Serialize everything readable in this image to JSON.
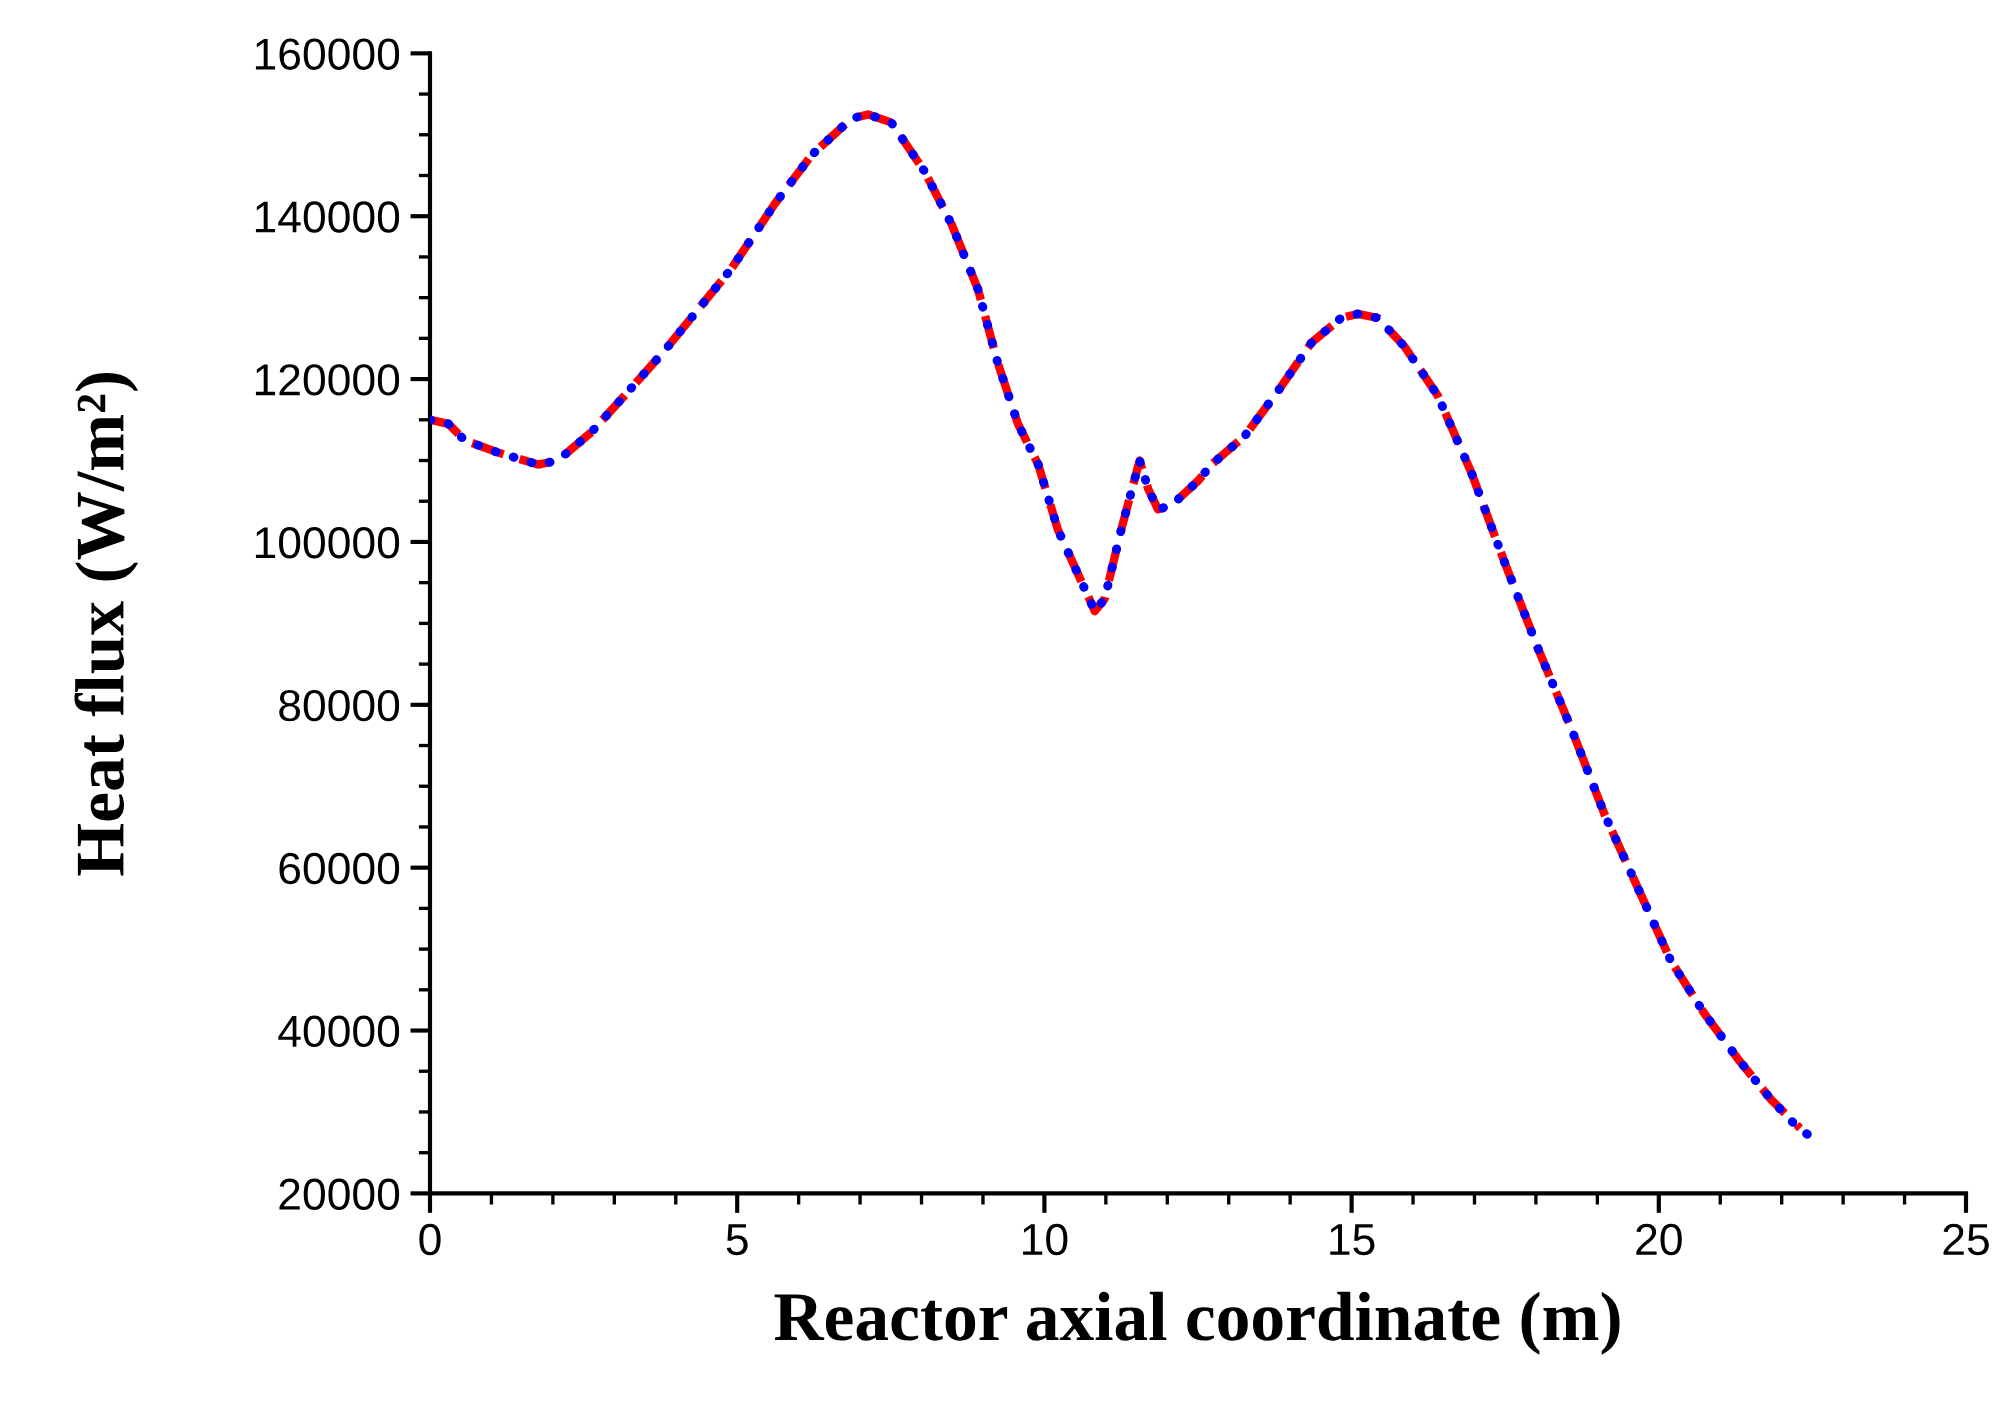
{
  "chart_data": {
    "type": "line",
    "xlabel": "Reactor axial coordinate (m)",
    "ylabel": "Heat flux (W/m²)",
    "xlim": [
      0,
      25
    ],
    "xticks": [
      0,
      5,
      10,
      15,
      20,
      25
    ],
    "ylim": [
      20000,
      160000
    ],
    "yticks": [
      20000,
      40000,
      60000,
      80000,
      100000,
      120000,
      140000,
      160000
    ],
    "grid": false,
    "marker": "none",
    "series": [
      {
        "color": "#ff0000",
        "line_style": "dashed",
        "x": [
          0,
          0.3,
          0.56,
          1.1,
          1.76,
          2.08,
          2.63,
          3.17,
          3.82,
          4.25,
          4.9,
          5.61,
          6.21,
          6.86,
          7.13,
          7.51,
          8.05,
          8.49,
          8.92,
          9.24,
          9.57,
          9.9,
          10.22,
          10.55,
          10.82,
          10.98,
          11.25,
          11.55,
          11.69,
          11.85,
          12.07,
          12.5,
          12.72,
          13.26,
          13.8,
          14.35,
          14.83,
          15.1,
          15.43,
          15.86,
          16.4,
          16.95,
          17.49,
          18.03,
          18.58,
          19.12,
          19.66,
          20.2,
          20.75,
          21.29,
          21.83,
          22.3
        ],
        "values": [
          115000,
          114500,
          112500,
          111000,
          109500,
          110000,
          113500,
          118000,
          123500,
          127500,
          133500,
          141500,
          147500,
          152000,
          152500,
          151500,
          145500,
          139000,
          131000,
          122000,
          114500,
          109500,
          101500,
          96000,
          91500,
          93000,
          101500,
          110000,
          106500,
          104000,
          104500,
          107500,
          109500,
          113000,
          118500,
          124500,
          127500,
          128000,
          127500,
          124000,
          118000,
          108500,
          97500,
          87000,
          77000,
          66500,
          57500,
          48500,
          42000,
          36500,
          31500,
          28000
        ]
      },
      {
        "color": "#0000ff",
        "line_style": "dotted",
        "x": [
          0,
          0.3,
          0.56,
          1.1,
          1.76,
          2.08,
          2.63,
          3.17,
          3.82,
          4.25,
          4.9,
          5.61,
          6.21,
          6.86,
          7.13,
          7.51,
          8.05,
          8.49,
          8.92,
          9.24,
          9.57,
          9.9,
          10.22,
          10.55,
          10.82,
          10.98,
          11.25,
          11.55,
          11.69,
          11.85,
          12.07,
          12.5,
          12.72,
          13.26,
          13.8,
          14.35,
          14.83,
          15.1,
          15.43,
          15.86,
          16.4,
          16.95,
          17.49,
          18.03,
          18.58,
          19.12,
          19.66,
          20.2,
          20.75,
          21.29,
          21.83,
          22.21,
          22.46
        ],
        "values": [
          115000,
          114500,
          112500,
          111000,
          109500,
          110000,
          113500,
          118000,
          123500,
          127500,
          133500,
          141500,
          147500,
          152000,
          152500,
          151500,
          145500,
          139000,
          131000,
          122000,
          114500,
          109500,
          101500,
          96000,
          91500,
          93000,
          101500,
          110000,
          106500,
          104000,
          104500,
          107500,
          109500,
          113000,
          118500,
          124500,
          127500,
          128000,
          127500,
          124000,
          118000,
          108500,
          97500,
          87000,
          77000,
          66500,
          57500,
          48500,
          42000,
          36500,
          31500,
          28500,
          27000
        ]
      }
    ]
  }
}
